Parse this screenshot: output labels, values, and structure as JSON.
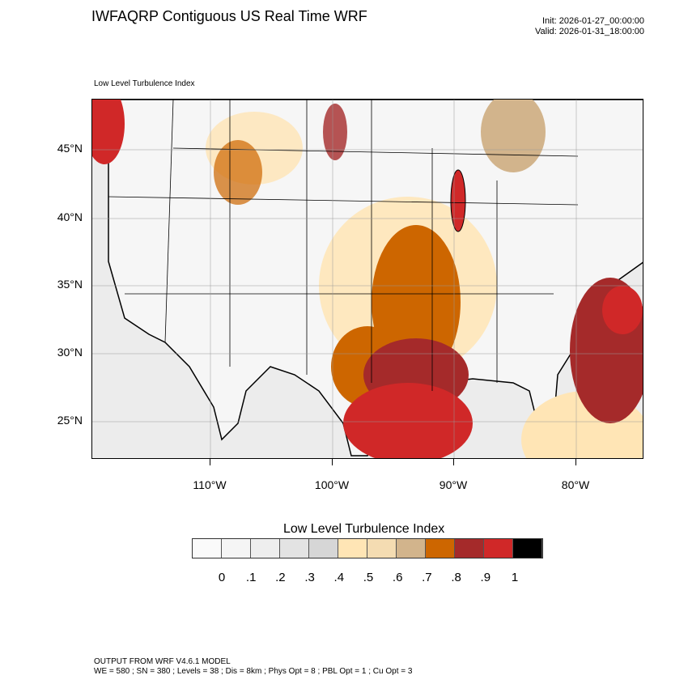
{
  "header": {
    "title": "IWFAQRP Contiguous US Real Time WRF",
    "init": "Init: 2026-01-27_00:00:00",
    "valid": "Valid: 2026-01-31_18:00:00"
  },
  "map": {
    "subtitle": "Low Level Turbulence Index",
    "lat_labels": [
      "45°N",
      "40°N",
      "35°N",
      "30°N",
      "25°N"
    ],
    "lon_labels": [
      "110°W",
      "100°W",
      "90°W",
      "80°W"
    ]
  },
  "colorbar": {
    "title": "Low Level Turbulence Index",
    "labels": [
      "0",
      ".1",
      ".2",
      ".3",
      ".4",
      ".5",
      ".6",
      ".7",
      ".8",
      ".9",
      "1"
    ],
    "colors": [
      "#fafafa",
      "#f5f5f5",
      "#eeeeee",
      "#e3e3e3",
      "#d6d6d6",
      "#ffe5b5",
      "#f4dcb2",
      "#d2b48c",
      "#cd6600",
      "#a52a2a",
      "#d02828",
      "#000000"
    ]
  },
  "footer": {
    "line1": "OUTPUT FROM WRF V4.6.1 MODEL",
    "line2": "WE = 580 ; SN = 380 ; Levels = 38 ; Dis = 8km ; Phys Opt = 8 ; PBL Opt = 1 ; Cu Opt = 3"
  }
}
